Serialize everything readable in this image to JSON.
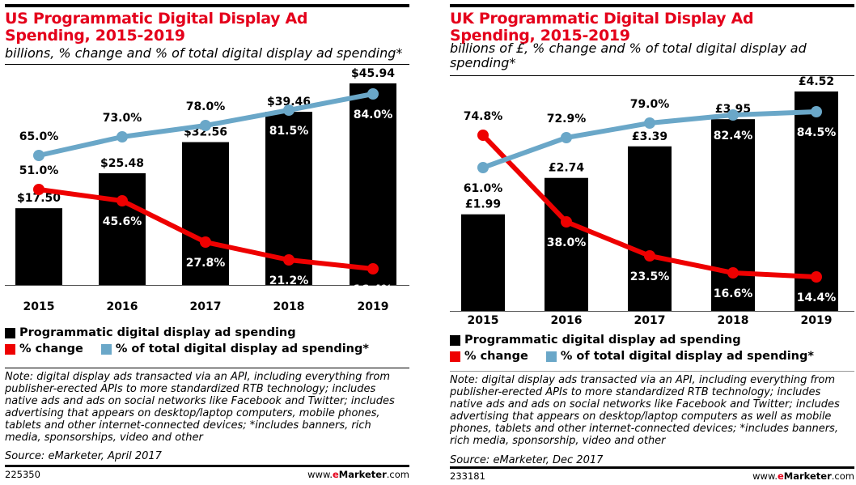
{
  "colors": {
    "bar": "#000000",
    "change": "#ee0000",
    "share": "#6aa7c8",
    "title": "#e4001b"
  },
  "chart_data": [
    {
      "type": "bar",
      "title": "US Programmatic Digital Display Ad Spending, 2015-2019",
      "subtitle": "billions, % change and % of total digital display ad spending*",
      "categories": [
        "2015",
        "2016",
        "2017",
        "2018",
        "2019"
      ],
      "series": [
        {
          "name": "Programmatic digital display ad spending",
          "kind": "bar",
          "values": [
            17.5,
            25.48,
            32.56,
            39.46,
            45.94
          ],
          "labels": [
            "$17.50",
            "$25.48",
            "$32.56",
            "$39.46",
            "$45.94"
          ]
        },
        {
          "name": "% change",
          "kind": "line",
          "values": [
            51.0,
            45.6,
            27.8,
            21.2,
            16.4
          ],
          "labels": [
            "51.0%",
            "45.6%",
            "27.8%",
            "21.2%",
            "16.4%"
          ]
        },
        {
          "name": "% of total digital display ad spending*",
          "kind": "line",
          "values": [
            65.0,
            73.0,
            78.0,
            81.5,
            84.0
          ],
          "labels": [
            "65.0%",
            "73.0%",
            "78.0%",
            "81.5%",
            "84.0%"
          ]
        }
      ],
      "legend": {
        "position": "bottom",
        "items": [
          "Programmatic digital display ad spending",
          "% change",
          "% of total digital display ad spending*"
        ]
      },
      "note": "Note: digital display ads transacted via an API, including everything from publisher-erected APIs to more standardized RTB technology; includes native ads and ads on social networks like Facebook and Twitter; includes advertising that appears on desktop/laptop computers, mobile phones, tablets and other internet-connected devices; *includes banners, rich media, sponsorships, video and other",
      "source": "Source: eMarketer, April 2017",
      "chart_id": "225350",
      "grid": false
    },
    {
      "type": "bar",
      "title": "UK Programmatic Digital Display Ad Spending, 2015-2019",
      "subtitle": "billions of £, % change and % of total digital display ad spending*",
      "categories": [
        "2015",
        "2016",
        "2017",
        "2018",
        "2019"
      ],
      "series": [
        {
          "name": "Programmatic digital display ad spending",
          "kind": "bar",
          "values": [
            1.99,
            2.74,
            3.39,
            3.95,
            4.52
          ],
          "labels": [
            "£1.99",
            "£2.74",
            "£3.39",
            "£3.95",
            "£4.52"
          ]
        },
        {
          "name": "% change",
          "kind": "line",
          "values": [
            74.8,
            38.0,
            23.5,
            16.6,
            14.4
          ],
          "labels": [
            "74.8%",
            "38.0%",
            "23.5%",
            "16.6%",
            "14.4%"
          ]
        },
        {
          "name": "% of total digital display ad spending*",
          "kind": "line",
          "values": [
            61.0,
            72.9,
            79.0,
            82.4,
            84.5
          ],
          "labels": [
            "61.0%",
            "72.9%",
            "79.0%",
            "82.4%",
            "84.5%"
          ]
        }
      ],
      "legend": {
        "position": "bottom",
        "items": [
          "Programmatic digital display ad spending",
          "% change",
          "% of total digital display ad spending*"
        ]
      },
      "note": "Note: digital display ads transacted via an API, including everything from publisher-erected APIs to more standardized RTB technology; includes native ads and ads on social networks like Facebook and Twitter; includes advertising that appears on desktop/laptop computers as well as mobile phones, tablets and other internet-connected devices; *includes banners, rich media, sponsorship, video and other",
      "source": "Source: eMarketer, Dec 2017",
      "chart_id": "233181",
      "grid": false
    }
  ],
  "footer": {
    "www": "www.",
    "e": "e",
    "marketer": "Marketer",
    ".com": ".com"
  }
}
